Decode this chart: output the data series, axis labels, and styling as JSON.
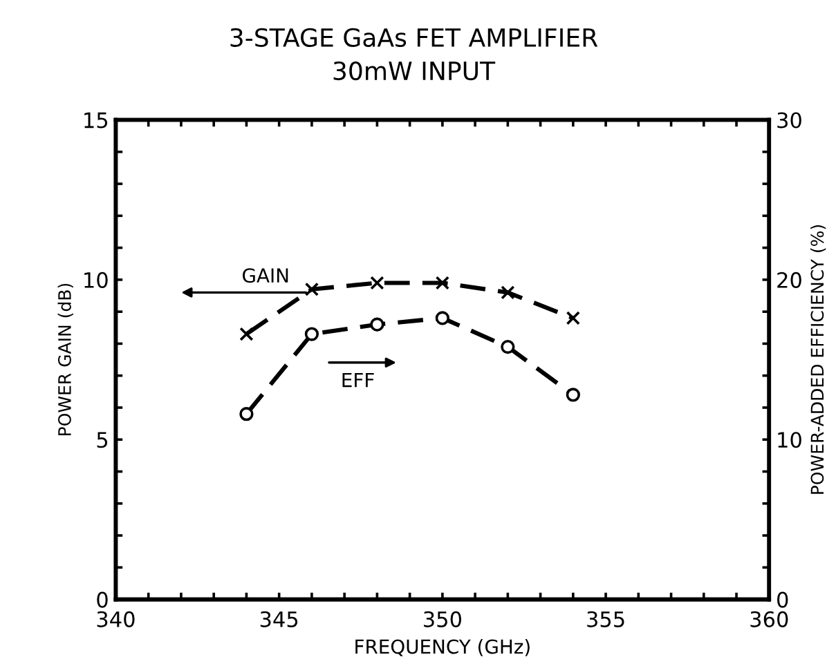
{
  "chart_data": {
    "type": "line",
    "title": "3-STAGE GaAs FET AMPLIFIER",
    "subtitle": "30mW INPUT",
    "xlabel": "FREQUENCY (GHz)",
    "ylabel": "POWER GAIN (dB)",
    "y2label": "POWER-ADDED EFFICIENCY (%)",
    "x": [
      344,
      346,
      348,
      350,
      352,
      354
    ],
    "series": [
      {
        "color": "#000000",
        "values": [
          8.3,
          9.7,
          9.9,
          9.9,
          9.6,
          8.8
        ],
        "marker": "cross",
        "line_style": "dashed"
      },
      {
        "color": "#000000",
        "values": [
          11.6,
          16.6,
          17.2,
          17.6,
          15.8,
          12.8
        ],
        "marker": "circle",
        "line_style": "dashed",
        "axis": "y2"
      }
    ],
    "annotations": [
      "GAIN",
      "EFF"
    ],
    "xlim": [
      340,
      360
    ],
    "xticks": [
      340,
      {
        "value": 341,
        "label": null
      },
      {
        "value": 342,
        "label": null
      },
      {
        "value": 343,
        "label": null
      },
      {
        "value": 344,
        "label": null
      },
      345,
      {
        "value": 346,
        "label": null
      },
      {
        "value": 347,
        "label": null
      },
      {
        "value": 348,
        "label": null
      },
      {
        "value": 349,
        "label": null
      },
      350,
      {
        "value": 351,
        "label": null
      },
      {
        "value": 352,
        "label": null
      },
      {
        "value": 353,
        "label": null
      },
      {
        "value": 354,
        "label": null
      },
      355,
      {
        "value": 356,
        "label": null
      },
      {
        "value": 357,
        "label": null
      },
      {
        "value": 358,
        "label": null
      },
      {
        "value": 359,
        "label": null
      },
      360
    ],
    "ylim": [
      0,
      15
    ],
    "yticks": [
      0,
      {
        "value": 1,
        "label": null
      },
      {
        "value": 2,
        "label": null
      },
      {
        "value": 3,
        "label": null
      },
      {
        "value": 4,
        "label": null
      },
      5,
      {
        "value": 6,
        "label": null
      },
      {
        "value": 7,
        "label": null
      },
      {
        "value": 8,
        "label": null
      },
      {
        "value": 9,
        "label": null
      },
      10,
      {
        "value": 11,
        "label": null
      },
      {
        "value": 12,
        "label": null
      },
      {
        "value": 13,
        "label": null
      },
      {
        "value": 14,
        "label": null
      },
      15
    ],
    "y2lim": [
      0,
      30
    ],
    "y2ticks": [
      0,
      {
        "value": 2,
        "label": null
      },
      {
        "value": 4,
        "label": null
      },
      {
        "value": 6,
        "label": null
      },
      {
        "value": 8,
        "label": null
      },
      10,
      {
        "value": 12,
        "label": null
      },
      {
        "value": 14,
        "label": null
      },
      {
        "value": 16,
        "label": null
      },
      {
        "value": 18,
        "label": null
      },
      20,
      {
        "value": 22,
        "label": null
      },
      {
        "value": 24,
        "label": null
      },
      {
        "value": 26,
        "label": null
      },
      {
        "value": 28,
        "label": null
      },
      30
    ],
    "grid": false,
    "legend": false
  }
}
